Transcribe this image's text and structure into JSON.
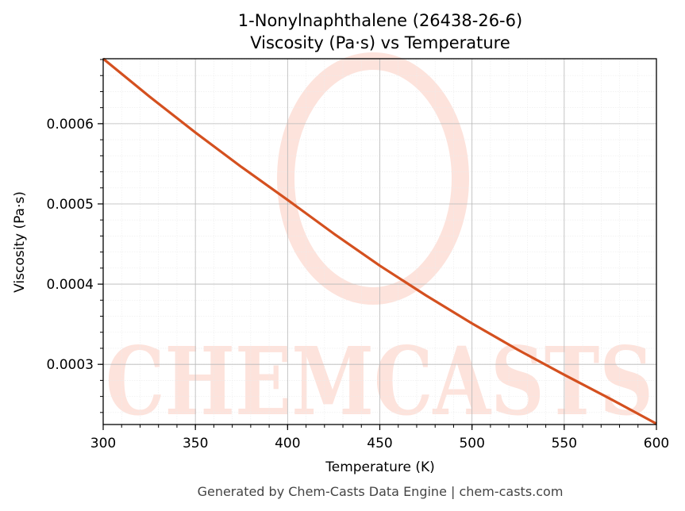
{
  "chart_data": {
    "type": "line",
    "title": "1-Nonylnaphthalene (26438-26-6)",
    "subtitle": "Viscosity (Pa·s) vs Temperature",
    "xlabel": "Temperature (K)",
    "ylabel": "Viscosity (Pa·s)",
    "xlim": [
      300,
      600
    ],
    "ylim": [
      0.000225,
      0.000681
    ],
    "xticks": [
      "300",
      "350",
      "400",
      "450",
      "500",
      "550",
      "600"
    ],
    "yticks": [
      "0.0003",
      "0.0004",
      "0.0005",
      "0.0006"
    ],
    "grid": true,
    "series": [
      {
        "color": "#d4501f",
        "x": [
          300,
          325,
          350,
          375,
          400,
          425,
          450,
          475,
          500,
          525,
          550,
          575,
          600
        ],
        "y": [
          0.000681,
          0.000634,
          0.000589,
          0.000546,
          0.000505,
          0.000463,
          0.000423,
          0.000386,
          0.000351,
          0.000318,
          0.000287,
          0.000257,
          0.000226
        ]
      }
    ]
  },
  "watermark": {
    "text": "CHEMCASTS",
    "color": "#fde3dc"
  },
  "footer": "Generated by Chem-Casts Data Engine | chem-casts.com"
}
